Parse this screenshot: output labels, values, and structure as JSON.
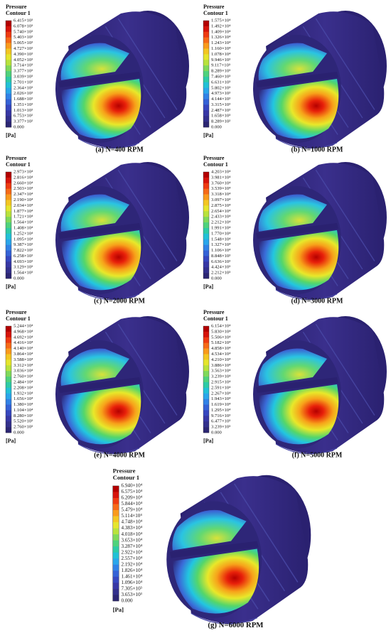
{
  "panels": [
    {
      "title": "Pressure",
      "subtitle": "Contour 1",
      "unit": "[Pa]",
      "caption": "(a) N=400 RPM",
      "levels": [
        "6.415×10³",
        "6.078×10³",
        "5.740×10³",
        "5.403×10³",
        "5.065×10³",
        "4.727×10³",
        "4.390×10³",
        "4.052×10³",
        "3.714×10³",
        "3.377×10³",
        "3.039×10³",
        "2.701×10³",
        "2.364×10³",
        "2.026×10³",
        "1.688×10³",
        "1.351×10³",
        "1.013×10³",
        "6.753×10²",
        "3.377×10²",
        "0.000"
      ]
    },
    {
      "title": "Pressure",
      "subtitle": "Contour 1",
      "unit": "[Pa]",
      "caption": "(b) N=1000 RPM",
      "levels": [
        "1.575×10⁴",
        "1.492×10⁴",
        "1.409×10⁴",
        "1.326×10⁴",
        "1.243×10⁴",
        "1.160×10⁴",
        "1.078×10⁴",
        "9.946×10³",
        "9.117×10³",
        "8.289×10³",
        "7.460×10³",
        "6.631×10³",
        "5.802×10³",
        "4.973×10³",
        "4.144×10³",
        "3.315×10³",
        "2.487×10³",
        "1.658×10³",
        "8.289×10²",
        "0.000"
      ]
    },
    {
      "title": "Pressure",
      "subtitle": "Contour 1",
      "unit": "[Pa]",
      "caption": "(c) N=2000 RPM",
      "levels": [
        "2.973×10⁴",
        "2.816×10⁴",
        "2.660×10⁴",
        "2.503×10⁴",
        "2.347×10⁴",
        "2.190×10⁴",
        "2.034×10⁴",
        "1.877×10⁴",
        "1.721×10⁴",
        "1.564×10⁴",
        "1.408×10⁴",
        "1.252×10⁴",
        "1.095×10⁴",
        "9.387×10³",
        "7.822×10³",
        "6.258×10³",
        "4.693×10³",
        "3.129×10³",
        "1.564×10³",
        "0.000"
      ]
    },
    {
      "title": "Pressure",
      "subtitle": "Contour 1",
      "unit": "[Pa]",
      "caption": "(d) N=3000 RPM",
      "levels": [
        "4.203×10⁴",
        "3.981×10⁴",
        "3.760×10⁴",
        "3.539×10⁴",
        "3.318×10⁴",
        "3.097×10⁴",
        "2.875×10⁴",
        "2.654×10⁴",
        "2.433×10⁴",
        "2.212×10⁴",
        "1.991×10⁴",
        "1.770×10⁴",
        "1.548×10⁴",
        "1.327×10⁴",
        "1.106×10⁴",
        "8.848×10³",
        "6.636×10³",
        "4.424×10³",
        "2.212×10³",
        "0.000"
      ]
    },
    {
      "title": "Pressure",
      "subtitle": "Contour 1",
      "unit": "[Pa]",
      "caption": "(e) N=4000 RPM",
      "levels": [
        "5.244×10⁴",
        "4.968×10⁴",
        "4.692×10⁴",
        "4.416×10⁴",
        "4.140×10⁴",
        "3.864×10⁴",
        "3.588×10⁴",
        "3.312×10⁴",
        "3.036×10⁴",
        "2.760×10⁴",
        "2.484×10⁴",
        "2.208×10⁴",
        "1.932×10⁴",
        "1.656×10⁴",
        "1.380×10⁴",
        "1.104×10⁴",
        "8.280×10³",
        "5.520×10³",
        "2.760×10³",
        "0.000"
      ]
    },
    {
      "title": "Pressure",
      "subtitle": "Contour 1",
      "unit": "[Pa]",
      "caption": "(f) N=5000 RPM",
      "levels": [
        "6.154×10⁴",
        "5.830×10⁴",
        "5.506×10⁴",
        "5.182×10⁴",
        "4.858×10⁴",
        "4.534×10⁴",
        "4.210×10⁴",
        "3.886×10⁴",
        "3.563×10⁴",
        "3.239×10⁴",
        "2.915×10⁴",
        "2.591×10⁴",
        "2.267×10⁴",
        "1.943×10⁴",
        "1.619×10⁴",
        "1.295×10⁴",
        "9.716×10³",
        "6.477×10³",
        "3.239×10³",
        "0.000"
      ]
    },
    {
      "title": "Pressure",
      "subtitle": "Contour 1",
      "unit": "[Pa]",
      "caption": "(g) N=6000 RPM",
      "levels": [
        "6.940×10⁴",
        "6.575×10⁴",
        "6.209×10⁴",
        "5.844×10⁴",
        "5.479×10⁴",
        "5.114×10⁴",
        "4.748×10⁴",
        "4.383×10⁴",
        "4.018×10⁴",
        "3.653×10⁴",
        "3.287×10⁴",
        "2.922×10⁴",
        "2.557×10⁴",
        "2.192×10⁴",
        "1.826×10⁴",
        "1.461×10⁴",
        "1.096×10⁴",
        "7.305×10³",
        "3.653×10³",
        "0.000"
      ]
    }
  ]
}
